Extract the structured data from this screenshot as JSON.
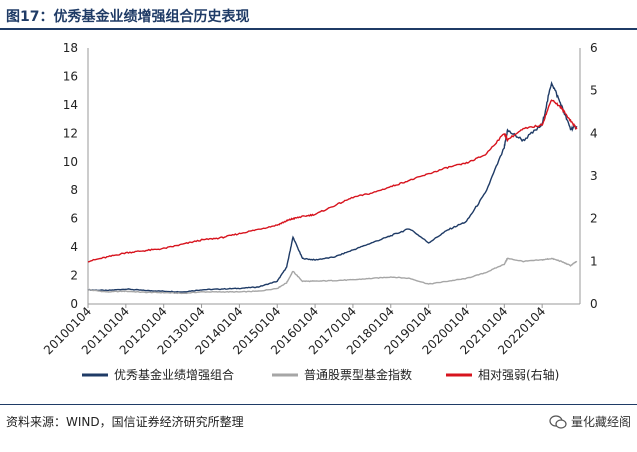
{
  "figure": {
    "title": "图17：优秀基金业绩增强组合历史表现",
    "source": "资料来源：WIND，国信证券经济研究所整理",
    "watermark": "量化藏经阁"
  },
  "chart_data": {
    "type": "line",
    "title": "",
    "x_ticks": [
      "20100104",
      "20110104",
      "20120104",
      "20130104",
      "20140104",
      "20150104",
      "20160104",
      "20170104",
      "20180104",
      "20190104",
      "20200104",
      "20210104",
      "20220104"
    ],
    "y_left": {
      "min": 0,
      "max": 18,
      "step": 2,
      "ticks": [
        "0",
        "2",
        "4",
        "6",
        "8",
        "10",
        "12",
        "14",
        "16",
        "18"
      ]
    },
    "y_right": {
      "min": 0,
      "max": 6,
      "step": 1,
      "ticks": [
        "0",
        "1",
        "2",
        "3",
        "4",
        "5",
        "6"
      ]
    },
    "x": [
      "2010-01",
      "2010-07",
      "2011-01",
      "2011-07",
      "2012-01",
      "2012-07",
      "2013-01",
      "2013-07",
      "2014-01",
      "2014-07",
      "2015-01",
      "2015-04",
      "2015-06",
      "2015-09",
      "2016-01",
      "2016-07",
      "2017-01",
      "2017-07",
      "2018-01",
      "2018-07",
      "2019-01",
      "2019-07",
      "2020-01",
      "2020-07",
      "2021-01",
      "2021-02",
      "2021-07",
      "2022-01",
      "2022-04",
      "2022-07",
      "2022-10",
      "2022-12"
    ],
    "series": [
      {
        "name": "优秀基金业绩增强组合",
        "axis": "left",
        "color": "#1f3b66",
        "values": [
          1.0,
          0.95,
          1.05,
          0.95,
          0.9,
          0.85,
          1.0,
          1.05,
          1.1,
          1.2,
          1.6,
          2.6,
          4.7,
          3.2,
          3.1,
          3.3,
          3.8,
          4.3,
          4.8,
          5.3,
          4.3,
          5.2,
          5.8,
          7.8,
          11.0,
          12.2,
          11.5,
          12.6,
          15.6,
          14.0,
          12.3,
          12.5
        ]
      },
      {
        "name": "普通股票型基金指数",
        "axis": "left",
        "color": "#a6a6a6",
        "values": [
          1.0,
          0.85,
          0.9,
          0.82,
          0.8,
          0.75,
          0.85,
          0.85,
          0.85,
          0.9,
          1.1,
          1.5,
          2.3,
          1.6,
          1.6,
          1.65,
          1.7,
          1.8,
          1.9,
          1.8,
          1.4,
          1.6,
          1.8,
          2.2,
          2.8,
          3.2,
          3.0,
          3.1,
          3.2,
          3.0,
          2.7,
          3.0
        ]
      },
      {
        "name": "相对强弱(右轴)",
        "axis": "right",
        "color": "#d7141e",
        "values": [
          1.0,
          1.1,
          1.2,
          1.25,
          1.3,
          1.4,
          1.5,
          1.55,
          1.65,
          1.75,
          1.85,
          1.95,
          2.0,
          2.05,
          2.1,
          2.3,
          2.5,
          2.6,
          2.75,
          2.9,
          3.05,
          3.2,
          3.3,
          3.5,
          4.0,
          3.85,
          4.1,
          4.2,
          4.8,
          4.6,
          4.3,
          4.1
        ]
      }
    ]
  }
}
